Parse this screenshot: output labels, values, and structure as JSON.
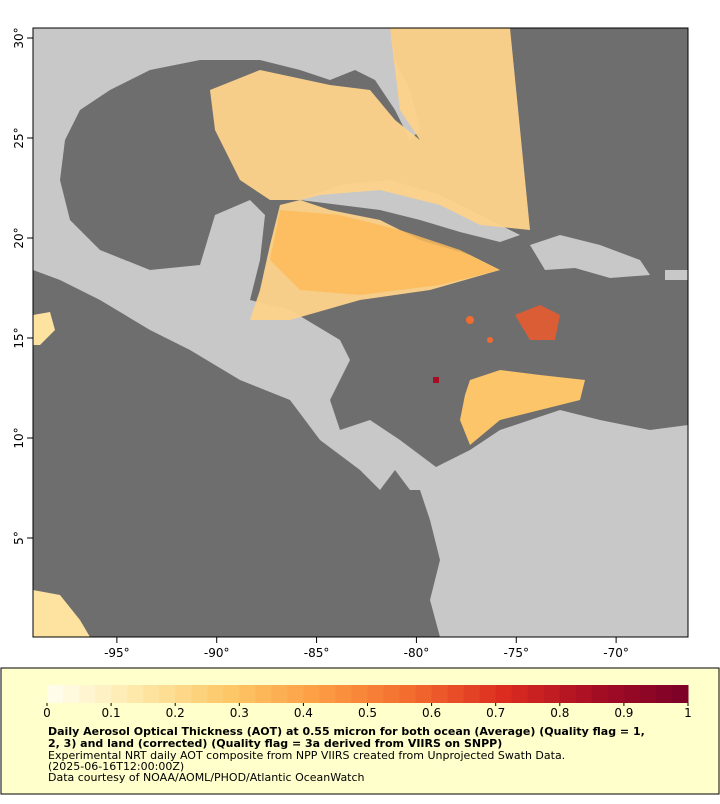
{
  "map": {
    "xlim": [
      -99.2,
      -66.4
    ],
    "ylim": [
      0.05,
      30.5
    ],
    "xticks": [
      {
        "value": -95,
        "label": "-95°"
      },
      {
        "value": -90,
        "label": "-90°"
      },
      {
        "value": -85,
        "label": "-85°"
      },
      {
        "value": -80,
        "label": "-80°"
      },
      {
        "value": -75,
        "label": "-75°"
      },
      {
        "value": -70,
        "label": "-70°"
      }
    ],
    "yticks": [
      {
        "value": 5,
        "label": "5°"
      },
      {
        "value": 10,
        "label": "10°"
      },
      {
        "value": 15,
        "label": "15°"
      },
      {
        "value": 20,
        "label": "20°"
      },
      {
        "value": 25,
        "label": "25°"
      },
      {
        "value": 30,
        "label": "30°"
      }
    ],
    "colorbar": {
      "lim": [
        0,
        1
      ],
      "ticks": [
        0,
        0.1,
        0.2,
        0.3,
        0.4,
        0.5,
        0.6,
        0.7,
        0.8,
        0.9,
        1
      ],
      "colors": [
        "#fffff0",
        "#fee8a8",
        "#fdc766",
        "#fd9b42",
        "#f26a2e",
        "#dc2b1f",
        "#a50d24",
        "#7a0027"
      ]
    }
  },
  "caption": {
    "title_lines": [
      "Daily Aerosol Optical Thickness (AOT) at 0.55 micron for both ocean (Average) (Quality flag = 1,",
      "2, 3) and land (corrected) (Quality flag = 3a derived from VIIRS on SNPP)"
    ],
    "lines": [
      "Experimental NRT daily AOT composite from NPP VIIRS created from Unprojected Swath Data.",
      "(2025-06-16T12:00:00Z)",
      "Data courtesy of NOAA/AOML/PHOD/Atlantic OceanWatch"
    ]
  }
}
